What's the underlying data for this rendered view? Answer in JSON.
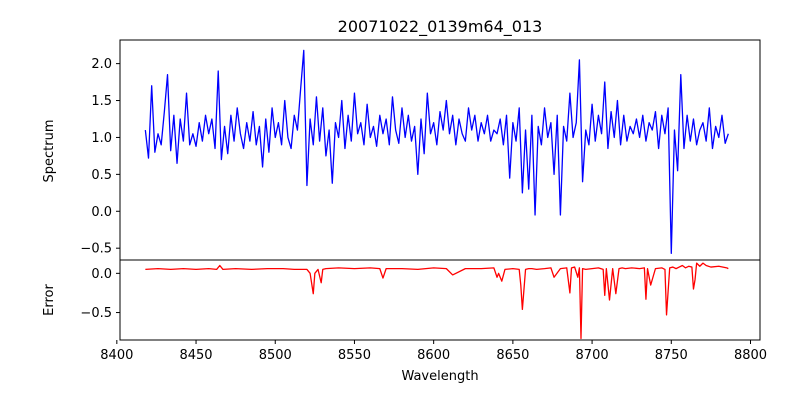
{
  "chart_data": [
    {
      "type": "line",
      "title": "20071022_0139m64_013",
      "xlabel": "",
      "ylabel": "Spectrum",
      "xlim": [
        8402,
        8806
      ],
      "ylim": [
        -0.66,
        2.32
      ],
      "y_ticks": [
        -0.5,
        0.0,
        0.5,
        1.0,
        1.5,
        2.0
      ],
      "y_tick_labels": [
        "−0.5",
        "0.0",
        "0.5",
        "1.0",
        "1.5",
        "2.0"
      ],
      "series": [
        {
          "color": "#0000ff",
          "x": [
            8418,
            8420,
            8422,
            8424,
            8426,
            8428,
            8430,
            8432,
            8434,
            8436,
            8438,
            8440,
            8442,
            8444,
            8446,
            8448,
            8450,
            8452,
            8454,
            8456,
            8458,
            8460,
            8462,
            8464,
            8466,
            8468,
            8470,
            8472,
            8474,
            8476,
            8478,
            8480,
            8482,
            8484,
            8486,
            8488,
            8490,
            8492,
            8494,
            8496,
            8498,
            8500,
            8502,
            8504,
            8506,
            8508,
            8510,
            8512,
            8514,
            8516,
            8518,
            8520,
            8522,
            8524,
            8526,
            8528,
            8530,
            8532,
            8534,
            8536,
            8538,
            8540,
            8542,
            8544,
            8546,
            8548,
            8550,
            8552,
            8554,
            8556,
            8558,
            8560,
            8562,
            8564,
            8566,
            8568,
            8570,
            8572,
            8574,
            8576,
            8578,
            8580,
            8582,
            8584,
            8586,
            8588,
            8590,
            8592,
            8594,
            8596,
            8598,
            8600,
            8602,
            8604,
            8606,
            8608,
            8610,
            8612,
            8614,
            8616,
            8618,
            8620,
            8622,
            8624,
            8626,
            8628,
            8630,
            8632,
            8634,
            8636,
            8638,
            8640,
            8642,
            8644,
            8646,
            8648,
            8650,
            8652,
            8654,
            8656,
            8658,
            8660,
            8662,
            8664,
            8666,
            8668,
            8670,
            8672,
            8674,
            8676,
            8678,
            8680,
            8682,
            8684,
            8686,
            8688,
            8690,
            8692,
            8694,
            8696,
            8698,
            8700,
            8702,
            8704,
            8706,
            8708,
            8710,
            8712,
            8714,
            8716,
            8718,
            8720,
            8722,
            8724,
            8726,
            8728,
            8730,
            8732,
            8734,
            8736,
            8738,
            8740,
            8742,
            8744,
            8746,
            8748,
            8750,
            8752,
            8754,
            8756,
            8758,
            8760,
            8762,
            8764,
            8766,
            8768,
            8770,
            8772,
            8774,
            8776,
            8778,
            8780,
            8782,
            8784,
            8786
          ],
          "y": [
            1.1,
            0.72,
            1.7,
            0.8,
            1.05,
            0.9,
            1.35,
            1.85,
            0.82,
            1.3,
            0.65,
            1.25,
            0.95,
            1.6,
            0.9,
            1.05,
            0.88,
            1.2,
            0.95,
            1.3,
            1.05,
            1.25,
            0.85,
            1.9,
            0.7,
            1.15,
            0.78,
            1.3,
            0.95,
            1.4,
            1.05,
            0.85,
            1.2,
            0.95,
            1.35,
            0.9,
            1.15,
            0.6,
            1.25,
            0.8,
            1.4,
            1.0,
            1.2,
            0.9,
            1.5,
            1.0,
            0.85,
            1.3,
            1.1,
            1.65,
            2.18,
            0.35,
            1.25,
            0.9,
            1.55,
            0.95,
            1.4,
            0.75,
            1.1,
            0.38,
            1.2,
            1.0,
            1.5,
            0.85,
            1.3,
            0.95,
            1.6,
            1.05,
            1.2,
            0.9,
            1.45,
            1.0,
            1.15,
            0.88,
            1.3,
            1.05,
            1.25,
            0.9,
            1.55,
            1.1,
            0.92,
            1.4,
            1.0,
            1.3,
            0.95,
            1.15,
            0.5,
            1.25,
            0.78,
            1.6,
            1.05,
            1.2,
            0.9,
            1.35,
            1.1,
            1.5,
            1.05,
            1.3,
            0.9,
            1.25,
            1.05,
            0.95,
            1.4,
            1.1,
            1.3,
            0.95,
            1.2,
            1.05,
            1.3,
            0.95,
            1.1,
            1.05,
            1.25,
            0.9,
            1.3,
            0.45,
            1.2,
            0.95,
            1.4,
            0.25,
            1.1,
            0.3,
            1.3,
            -0.05,
            1.15,
            0.9,
            1.4,
            1.0,
            1.2,
            0.5,
            1.3,
            -0.05,
            1.15,
            0.95,
            1.6,
            1.0,
            1.2,
            2.05,
            0.4,
            1.1,
            0.9,
            1.45,
            0.95,
            1.3,
            1.05,
            1.75,
            0.85,
            1.35,
            1.0,
            1.5,
            0.9,
            1.3,
            0.95,
            1.15,
            1.05,
            1.25,
            1.0,
            1.3,
            0.95,
            1.2,
            1.1,
            1.35,
            0.85,
            1.3,
            1.05,
            1.4,
            -0.57,
            1.1,
            0.55,
            1.85,
            0.85,
            1.3,
            0.95,
            1.25,
            0.9,
            1.1,
            1.2,
            0.95,
            1.4,
            0.85,
            1.15,
            1.0,
            1.3,
            0.92,
            1.05
          ]
        }
      ]
    },
    {
      "type": "line",
      "title": "",
      "xlabel": "Wavelength",
      "ylabel": "Error",
      "xlim": [
        8402,
        8806
      ],
      "ylim": [
        -0.85,
        0.17
      ],
      "y_ticks": [
        -0.5,
        0.0
      ],
      "y_tick_labels": [
        "−0.5",
        "0.0"
      ],
      "x_ticks": [
        8400,
        8450,
        8500,
        8550,
        8600,
        8650,
        8700,
        8750,
        8800
      ],
      "x_tick_labels": [
        "8400",
        "8450",
        "8500",
        "8550",
        "8600",
        "8650",
        "8700",
        "8750",
        "8800"
      ],
      "series": [
        {
          "color": "#ff0000",
          "x": [
            8418,
            8426,
            8434,
            8442,
            8450,
            8458,
            8463,
            8465,
            8467,
            8475,
            8485,
            8495,
            8505,
            8512,
            8520,
            8522,
            8524,
            8525,
            8527,
            8529,
            8530,
            8532,
            8540,
            8550,
            8560,
            8566,
            8568,
            8570,
            8580,
            8590,
            8600,
            8608,
            8612,
            8620,
            8630,
            8638,
            8640,
            8641,
            8643,
            8645,
            8650,
            8654,
            8655,
            8656,
            8658,
            8660,
            8662,
            8665,
            8670,
            8674,
            8676,
            8680,
            8684,
            8686,
            8687,
            8689,
            8691,
            8692,
            8693,
            8694,
            8696,
            8700,
            8704,
            8707,
            8708,
            8709,
            8711,
            8713,
            8714,
            8715,
            8717,
            8719,
            8721,
            8725,
            8730,
            8733,
            8734,
            8735,
            8737,
            8740,
            8744,
            8746,
            8747,
            8749,
            8751,
            8753,
            8755,
            8757,
            8759,
            8761,
            8763,
            8764,
            8765,
            8766,
            8768,
            8770,
            8772,
            8775,
            8780,
            8785,
            8786
          ],
          "y": [
            0.05,
            0.06,
            0.05,
            0.06,
            0.05,
            0.06,
            0.05,
            0.1,
            0.05,
            0.06,
            0.05,
            0.06,
            0.06,
            0.05,
            0.05,
            0.0,
            -0.26,
            0.0,
            0.05,
            -0.12,
            0.05,
            0.06,
            0.07,
            0.06,
            0.07,
            0.06,
            -0.06,
            0.06,
            0.06,
            0.05,
            0.07,
            0.06,
            -0.02,
            0.06,
            0.06,
            0.07,
            -0.05,
            0.0,
            -0.1,
            0.05,
            0.06,
            0.05,
            -0.15,
            -0.46,
            0.05,
            0.06,
            0.06,
            0.05,
            0.06,
            0.07,
            -0.05,
            0.06,
            0.07,
            -0.25,
            0.07,
            0.08,
            -0.05,
            0.07,
            -0.83,
            0.06,
            0.05,
            0.06,
            0.07,
            0.05,
            -0.28,
            0.06,
            -0.34,
            0.06,
            -0.1,
            -0.26,
            0.06,
            0.07,
            0.06,
            0.07,
            0.06,
            0.07,
            -0.33,
            0.06,
            -0.15,
            0.06,
            0.07,
            0.05,
            -0.53,
            0.07,
            0.08,
            0.06,
            0.08,
            0.1,
            0.07,
            0.09,
            0.08,
            -0.2,
            -0.08,
            0.13,
            0.09,
            0.13,
            0.1,
            0.08,
            0.09,
            0.07,
            0.06
          ]
        }
      ]
    }
  ]
}
